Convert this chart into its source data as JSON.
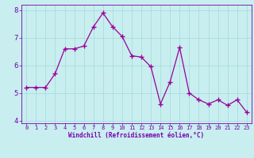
{
  "x": [
    0,
    1,
    2,
    3,
    4,
    5,
    6,
    7,
    8,
    9,
    10,
    11,
    12,
    13,
    14,
    15,
    16,
    17,
    18,
    19,
    20,
    21,
    22,
    23
  ],
  "y": [
    5.2,
    5.2,
    5.2,
    5.7,
    6.6,
    6.6,
    6.7,
    7.4,
    7.9,
    7.4,
    7.05,
    6.35,
    6.3,
    5.95,
    4.6,
    5.4,
    6.65,
    5.0,
    4.75,
    4.6,
    4.75,
    4.55,
    4.75,
    4.3
  ],
  "line_color": "#990099",
  "marker": "+",
  "marker_size": 5,
  "bg_color": "#c8eef0",
  "grid_color": "#aadddd",
  "xlabel": "Windchill (Refroidissement éolien,°C)",
  "xlabel_color": "#7700aa",
  "tick_color": "#7700aa",
  "ylim": [
    3.9,
    8.2
  ],
  "xlim": [
    -0.5,
    23.5
  ],
  "yticks": [
    4,
    5,
    6,
    7,
    8
  ],
  "xticks": [
    0,
    1,
    2,
    3,
    4,
    5,
    6,
    7,
    8,
    9,
    10,
    11,
    12,
    13,
    14,
    15,
    16,
    17,
    18,
    19,
    20,
    21,
    22,
    23
  ]
}
